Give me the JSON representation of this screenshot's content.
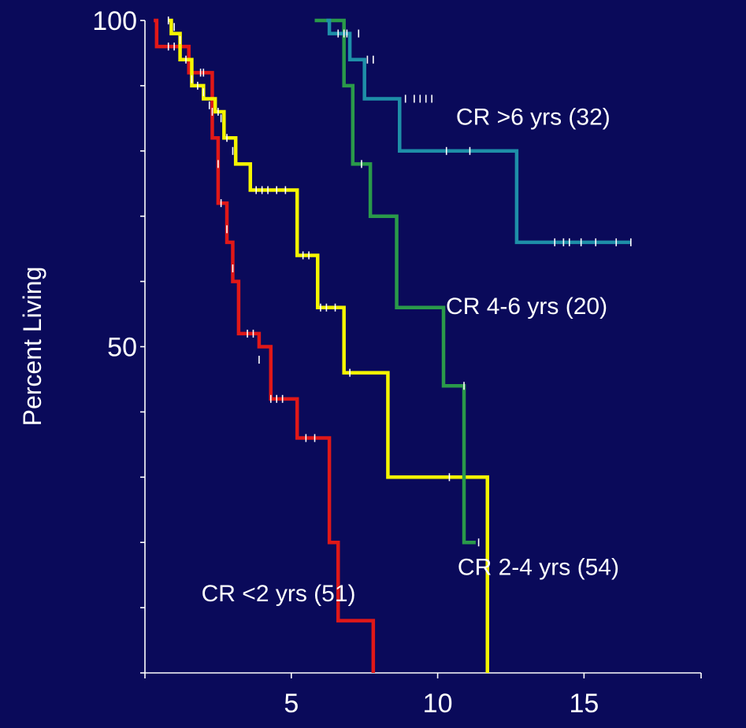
{
  "chart_data": {
    "type": "line",
    "step": true,
    "ylabel": "Percent Living",
    "xlabel": "",
    "xlim": [
      0,
      19
    ],
    "ylim": [
      0,
      100
    ],
    "xticks": [
      5,
      10,
      15
    ],
    "xtick_marks": [
      0,
      5,
      10,
      15,
      19
    ],
    "yticks": [
      50,
      100
    ],
    "ytick_marks": [
      0,
      10,
      20,
      30,
      40,
      50,
      60,
      70,
      80,
      90,
      100
    ],
    "grid": false,
    "background": "#0a0a5a",
    "series": [
      {
        "name": "CR <2 yrs (51)",
        "color": "#e01818",
        "steps": [
          [
            0.3,
            100
          ],
          [
            0.4,
            96
          ],
          [
            1.4,
            96
          ],
          [
            1.5,
            92
          ],
          [
            2.2,
            92
          ],
          [
            2.3,
            82
          ],
          [
            2.5,
            72
          ],
          [
            2.8,
            66
          ],
          [
            3.0,
            60
          ],
          [
            3.2,
            52
          ],
          [
            3.7,
            52
          ],
          [
            3.9,
            50
          ],
          [
            4.2,
            50
          ],
          [
            4.3,
            42
          ],
          [
            5.1,
            42
          ],
          [
            5.2,
            36
          ],
          [
            6.2,
            36
          ],
          [
            6.3,
            20
          ],
          [
            6.5,
            20
          ],
          [
            6.6,
            8
          ],
          [
            7.7,
            8
          ],
          [
            7.8,
            0
          ]
        ],
        "censored": [
          [
            0.8,
            96
          ],
          [
            1.0,
            96
          ],
          [
            1.9,
            92
          ],
          [
            2.0,
            92
          ],
          [
            2.3,
            86
          ],
          [
            2.5,
            78
          ],
          [
            2.6,
            72
          ],
          [
            2.8,
            68
          ],
          [
            3.0,
            62
          ],
          [
            3.5,
            52
          ],
          [
            3.7,
            52
          ],
          [
            3.9,
            48
          ],
          [
            4.3,
            42
          ],
          [
            4.5,
            42
          ],
          [
            4.7,
            42
          ],
          [
            5.5,
            36
          ],
          [
            5.8,
            36
          ]
        ],
        "label_pos": [
          7.2,
          11
        ]
      },
      {
        "name": "CR 2-4 yrs (54)",
        "color": "#f5f500",
        "steps": [
          [
            0.8,
            100
          ],
          [
            0.9,
            98
          ],
          [
            1.1,
            98
          ],
          [
            1.2,
            94
          ],
          [
            1.5,
            94
          ],
          [
            1.6,
            90
          ],
          [
            1.9,
            90
          ],
          [
            2.0,
            88
          ],
          [
            2.3,
            88
          ],
          [
            2.4,
            86
          ],
          [
            2.6,
            86
          ],
          [
            2.7,
            82
          ],
          [
            3.0,
            82
          ],
          [
            3.1,
            78
          ],
          [
            3.5,
            78
          ],
          [
            3.6,
            74
          ],
          [
            5.1,
            74
          ],
          [
            5.2,
            64
          ],
          [
            5.8,
            64
          ],
          [
            5.9,
            56
          ],
          [
            6.7,
            56
          ],
          [
            6.8,
            46
          ],
          [
            8.2,
            46
          ],
          [
            8.3,
            30
          ],
          [
            11.6,
            30
          ],
          [
            11.7,
            0
          ]
        ],
        "censored": [
          [
            0.8,
            100
          ],
          [
            1.0,
            99
          ],
          [
            1.2,
            97
          ],
          [
            1.4,
            94
          ],
          [
            1.6,
            91
          ],
          [
            1.8,
            90
          ],
          [
            2.0,
            89
          ],
          [
            2.2,
            87
          ],
          [
            2.5,
            86
          ],
          [
            2.6,
            85
          ],
          [
            2.8,
            82
          ],
          [
            3.0,
            80
          ],
          [
            3.8,
            74
          ],
          [
            4.0,
            74
          ],
          [
            4.2,
            74
          ],
          [
            4.5,
            74
          ],
          [
            4.8,
            74
          ],
          [
            5.4,
            64
          ],
          [
            5.6,
            64
          ],
          [
            6.0,
            56
          ],
          [
            6.2,
            56
          ],
          [
            6.5,
            56
          ],
          [
            7.0,
            46
          ],
          [
            10.4,
            30
          ]
        ],
        "label_pos": [
          16.2,
          15
        ]
      },
      {
        "name": "CR 4-6 yrs (20)",
        "color": "#2a9a4a",
        "steps": [
          [
            5.8,
            100
          ],
          [
            6.7,
            100
          ],
          [
            6.8,
            90
          ],
          [
            7.0,
            90
          ],
          [
            7.1,
            78
          ],
          [
            7.6,
            78
          ],
          [
            7.7,
            70
          ],
          [
            8.5,
            70
          ],
          [
            8.6,
            56
          ],
          [
            10.1,
            56
          ],
          [
            10.2,
            44
          ],
          [
            10.8,
            44
          ],
          [
            10.9,
            20
          ],
          [
            11.3,
            20
          ]
        ],
        "censored": [
          [
            7.4,
            78
          ],
          [
            10.9,
            44
          ],
          [
            11.4,
            20
          ]
        ],
        "label_pos": [
          15.8,
          55
        ]
      },
      {
        "name": "CR >6 yrs (32)",
        "color": "#1e8fa8",
        "steps": [
          [
            6.2,
            100
          ],
          [
            6.3,
            98
          ],
          [
            6.9,
            98
          ],
          [
            7.0,
            94
          ],
          [
            7.4,
            94
          ],
          [
            7.5,
            88
          ],
          [
            8.6,
            88
          ],
          [
            8.7,
            80
          ],
          [
            12.6,
            80
          ],
          [
            12.7,
            66
          ],
          [
            16.6,
            66
          ]
        ],
        "censored": [
          [
            6.6,
            98
          ],
          [
            6.8,
            98
          ],
          [
            6.9,
            98
          ],
          [
            7.3,
            98
          ],
          [
            7.6,
            94
          ],
          [
            7.8,
            94
          ],
          [
            8.9,
            88
          ],
          [
            9.2,
            88
          ],
          [
            9.4,
            88
          ],
          [
            9.6,
            88
          ],
          [
            9.8,
            88
          ],
          [
            10.3,
            80
          ],
          [
            11.1,
            80
          ],
          [
            14.0,
            66
          ],
          [
            14.3,
            66
          ],
          [
            14.5,
            66
          ],
          [
            14.9,
            66
          ],
          [
            15.4,
            66
          ],
          [
            16.1,
            66
          ],
          [
            16.6,
            66
          ]
        ],
        "label_pos": [
          15.9,
          84
        ]
      }
    ]
  }
}
